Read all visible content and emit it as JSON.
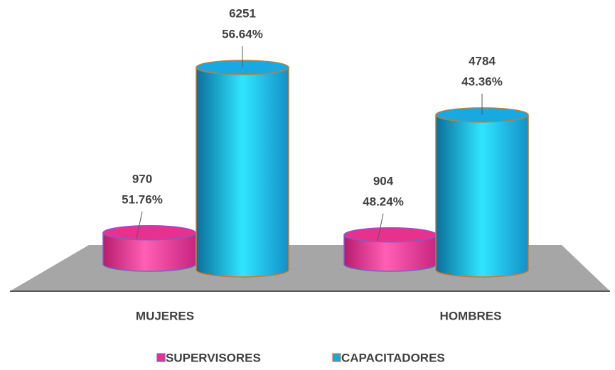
{
  "chart_data": {
    "type": "bar3d",
    "categories": [
      "MUJERES",
      "HOMBRES"
    ],
    "series": [
      {
        "name": "SUPERVISORES",
        "color": "#e8318f",
        "values": [
          970,
          904
        ],
        "percent_labels": [
          "51.76%",
          "48.24%"
        ]
      },
      {
        "name": "CAPACITADORES",
        "color": "#17a9e1",
        "values": [
          6251,
          4784
        ],
        "percent_labels": [
          "56.64%",
          "43.36%"
        ]
      }
    ],
    "legend": "bottom"
  }
}
